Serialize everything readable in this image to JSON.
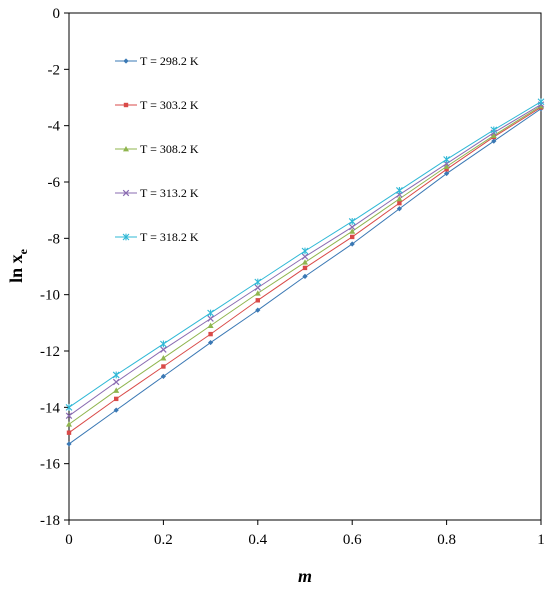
{
  "chart_data": {
    "type": "line",
    "title": "",
    "xlabel": "m",
    "ylabel": "ln x",
    "ylabel_sub": "e",
    "xlim": [
      0,
      1
    ],
    "ylim": [
      -18,
      0
    ],
    "x_ticks": [
      "0",
      "0.2",
      "0.4",
      "0.6",
      "0.8",
      "1"
    ],
    "x_tick_values": [
      0,
      0.2,
      0.4,
      0.6,
      0.8,
      1
    ],
    "y_ticks": [
      "0",
      "-2",
      "-4",
      "-6",
      "-8",
      "-10",
      "-12",
      "-14",
      "-16",
      "-18"
    ],
    "y_tick_values": [
      0,
      -2,
      -4,
      -6,
      -8,
      -10,
      -12,
      -14,
      -16,
      -18
    ],
    "grid": false,
    "legend_position": "top-left",
    "x": [
      0,
      0.1,
      0.2,
      0.3,
      0.4,
      0.5,
      0.6,
      0.7,
      0.8,
      0.9,
      1.0
    ],
    "series": [
      {
        "name": "T = 298.2 K",
        "color": "#3a78b4",
        "marker": "diamond",
        "values": [
          -15.3,
          -14.1,
          -12.9,
          -11.7,
          -10.55,
          -9.35,
          -8.2,
          -6.95,
          -5.7,
          -4.55,
          -3.4
        ]
      },
      {
        "name": "T = 303.2 K",
        "color": "#d94a48",
        "marker": "square",
        "values": [
          -14.9,
          -13.7,
          -12.55,
          -11.4,
          -10.2,
          -9.05,
          -7.95,
          -6.75,
          -5.55,
          -4.4,
          -3.35
        ]
      },
      {
        "name": "T = 308.2 K",
        "color": "#8fb54e",
        "marker": "triangle",
        "values": [
          -14.6,
          -13.4,
          -12.25,
          -11.1,
          -9.95,
          -8.85,
          -7.75,
          -6.6,
          -5.45,
          -4.35,
          -3.3
        ]
      },
      {
        "name": "T = 313.2 K",
        "color": "#8a6bb1",
        "marker": "x",
        "values": [
          -14.3,
          -13.1,
          -11.95,
          -10.85,
          -9.75,
          -8.65,
          -7.6,
          -6.45,
          -5.35,
          -4.25,
          -3.25
        ]
      },
      {
        "name": "T = 318.2 K",
        "color": "#2fb8d6",
        "marker": "star",
        "values": [
          -14.0,
          -12.85,
          -11.75,
          -10.65,
          -9.55,
          -8.45,
          -7.4,
          -6.3,
          -5.2,
          -4.15,
          -3.15
        ]
      }
    ]
  }
}
